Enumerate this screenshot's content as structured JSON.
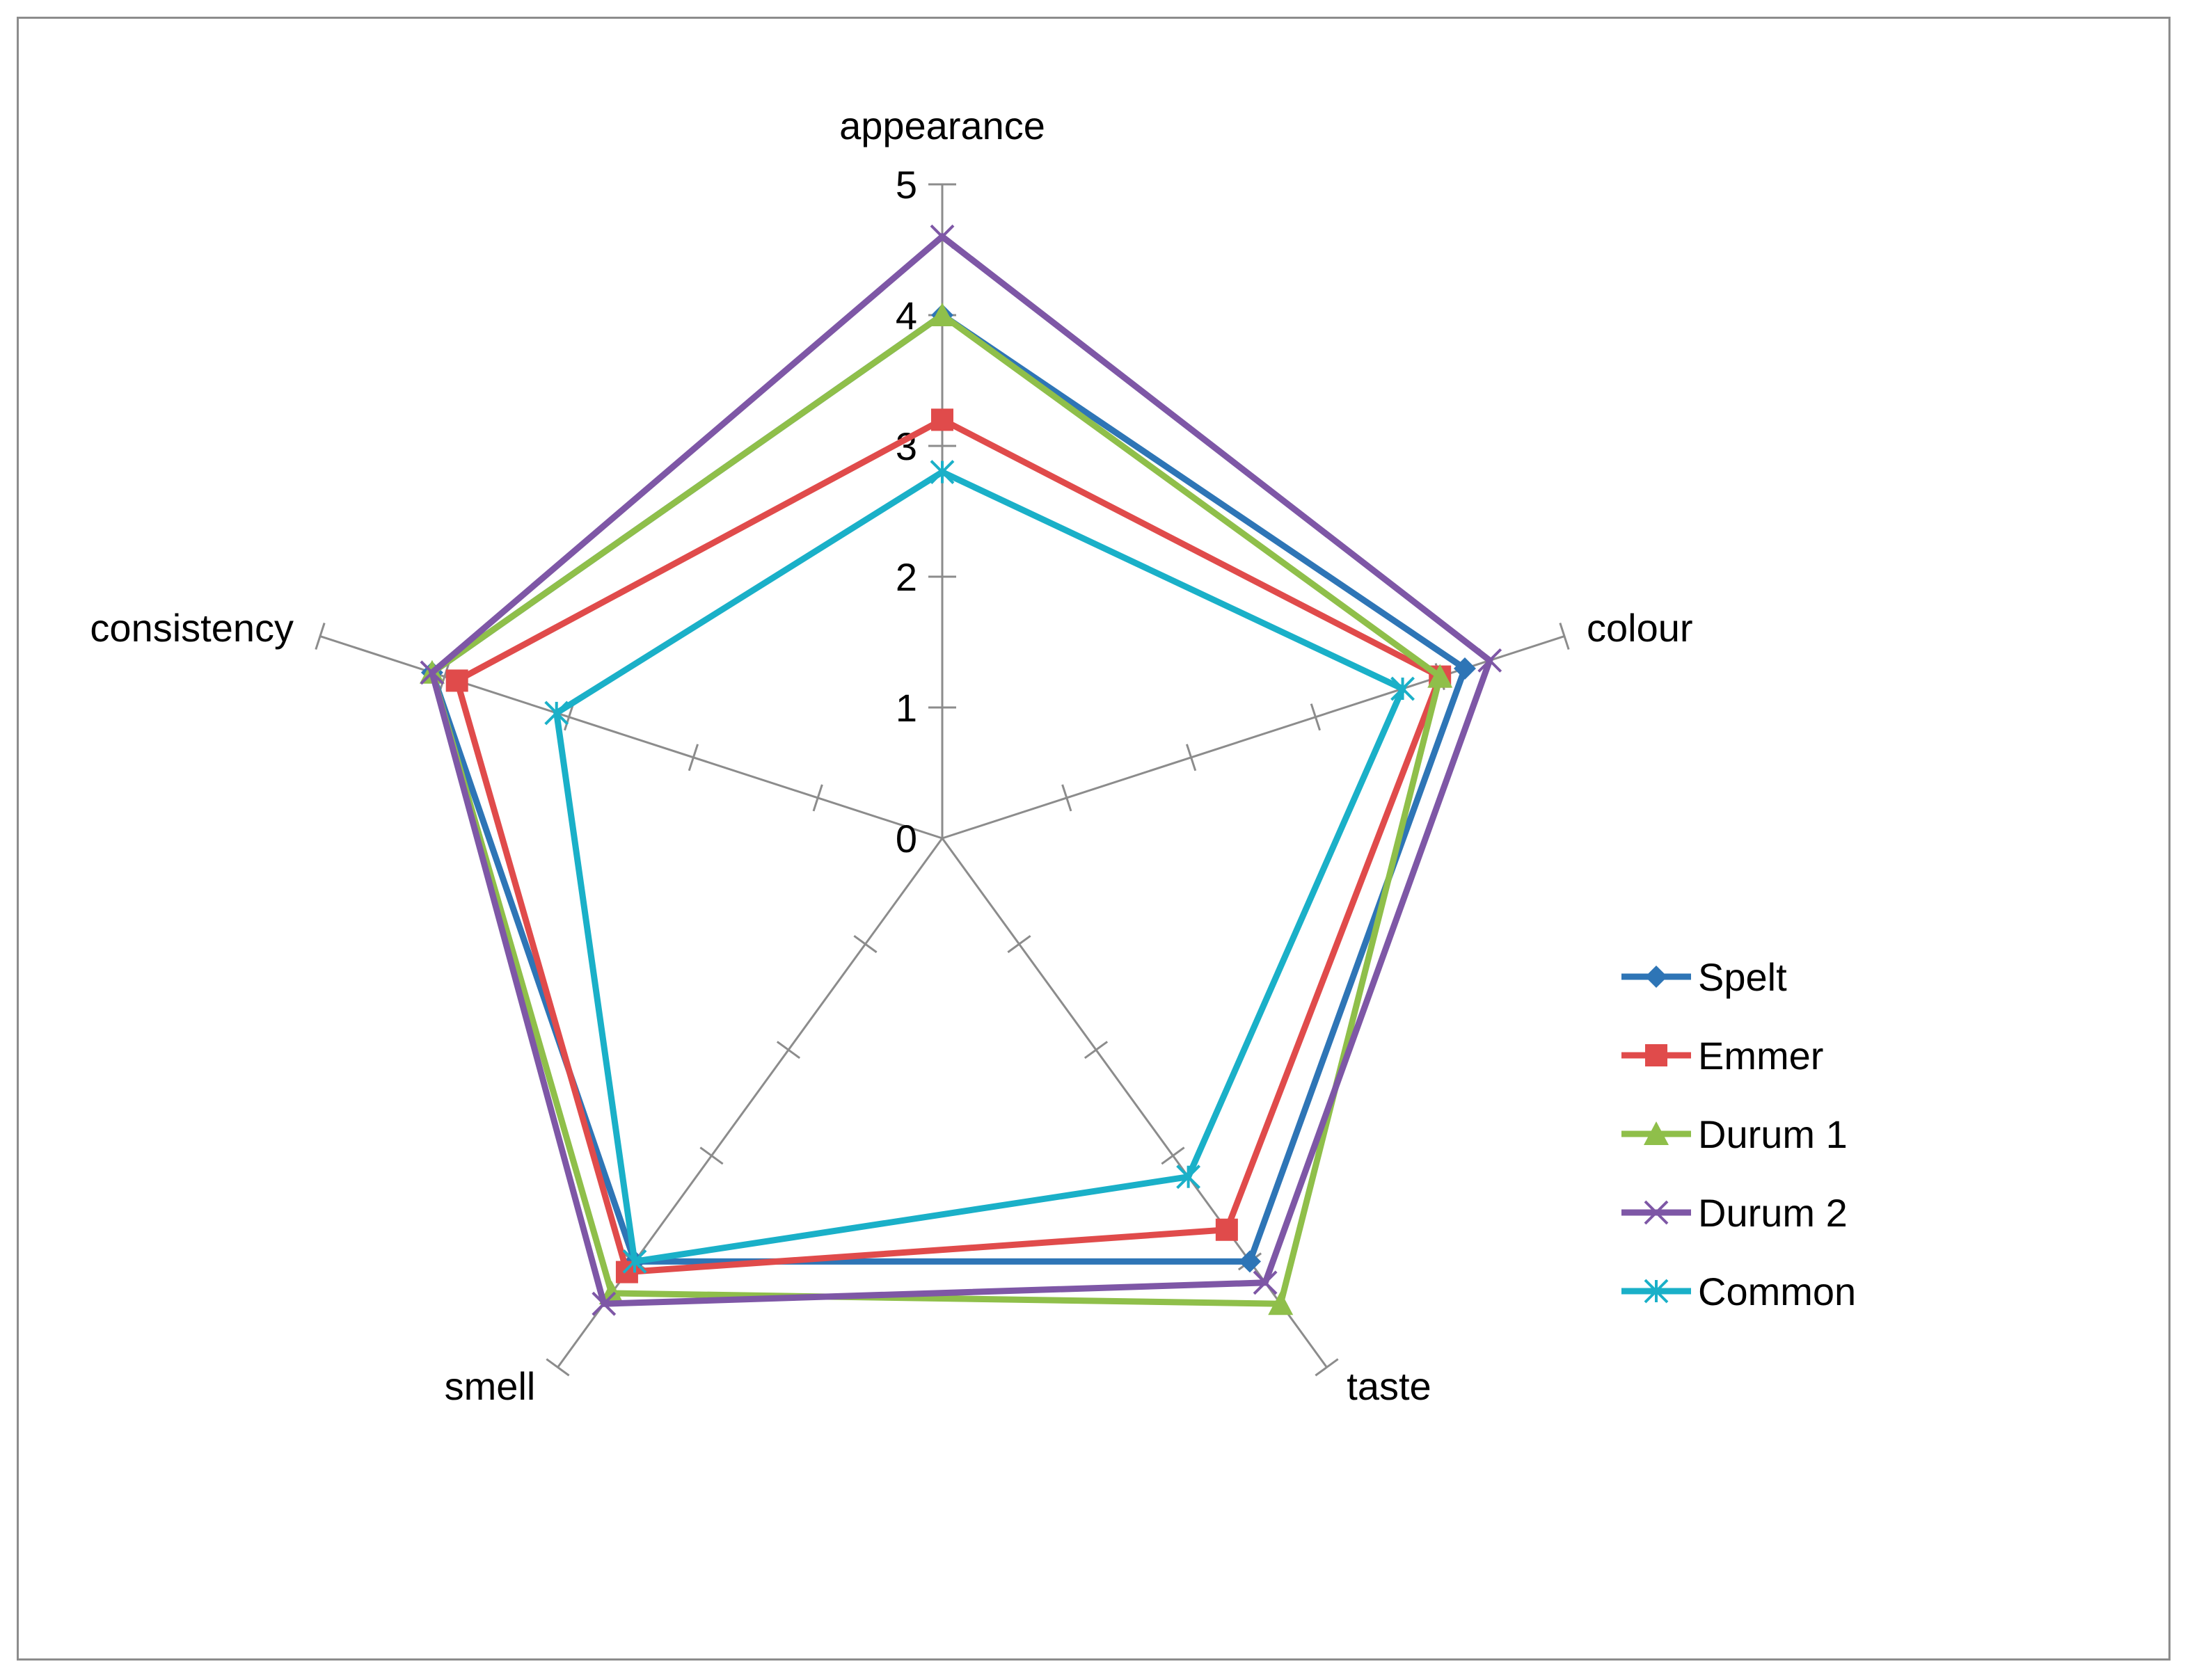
{
  "chart_data": {
    "type": "radar",
    "axes": [
      "appearance",
      "colour",
      "taste",
      "smell",
      "consistency"
    ],
    "ticks": [
      "0",
      "1",
      "2",
      "3",
      "4",
      "5"
    ],
    "range": [
      0,
      5
    ],
    "legend_position": "right",
    "series": [
      {
        "name": "Spelt",
        "color": "#2e75b6",
        "marker": "diamond",
        "values": [
          4.0,
          4.2,
          4.0,
          4.0,
          4.1
        ]
      },
      {
        "name": "Emmer",
        "color": "#e04b4b",
        "marker": "square",
        "values": [
          3.2,
          4.0,
          3.7,
          4.1,
          3.9
        ]
      },
      {
        "name": "Durum 1",
        "color": "#8fbf4a",
        "marker": "triangle",
        "values": [
          4.0,
          4.0,
          4.4,
          4.3,
          4.1
        ]
      },
      {
        "name": "Durum 2",
        "color": "#7e57a6",
        "marker": "x",
        "values": [
          4.6,
          4.4,
          4.2,
          4.4,
          4.1
        ]
      },
      {
        "name": "Common",
        "color": "#1ab0c8",
        "marker": "asterisk",
        "values": [
          2.8,
          3.7,
          3.2,
          4.0,
          3.1
        ]
      }
    ]
  }
}
